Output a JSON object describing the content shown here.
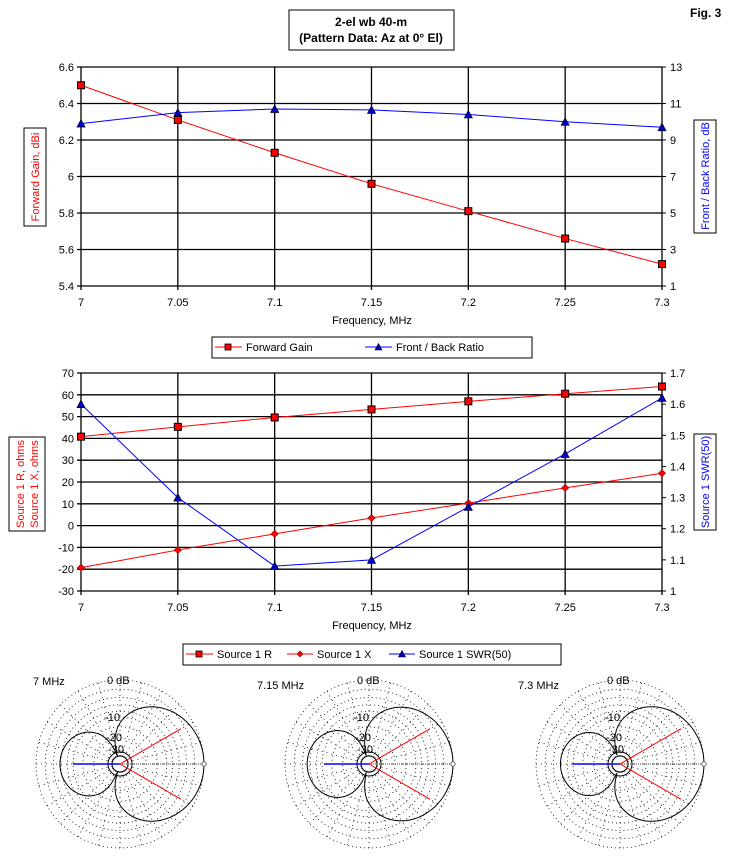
{
  "figure": {
    "label": "Fig. 3",
    "title_line1": "2-el wb 40-m",
    "title_line2": "(Pattern Data: Az at 0° El)"
  },
  "colors": {
    "red": "#ff0000",
    "blue": "#0000ff",
    "marker_red": "#ff0000",
    "marker_blue": "#0000cc"
  },
  "chart_data": [
    {
      "type": "line",
      "title": "2-el wb 40-m (Pattern Data: Az at 0° El)",
      "xlabel": "Frequency, MHz",
      "ylabel": "Forward Gain, dBi",
      "y2label": "Front / Back Ratio, dB",
      "x": [
        7,
        7.05,
        7.1,
        7.15,
        7.2,
        7.25,
        7.3
      ],
      "x_tick_labels": [
        "7",
        "7.05",
        "7.1",
        "7.15",
        "7.2",
        "7.25",
        "7.3"
      ],
      "xlim": [
        7,
        7.3
      ],
      "ylim": [
        5.4,
        6.6
      ],
      "y_tick_labels": [
        "6.6",
        "6.4",
        "6.2",
        "6",
        "5.8",
        "5.6",
        "5.4"
      ],
      "y2lim": [
        1,
        13
      ],
      "y2_tick_labels": [
        "13",
        "11",
        "9",
        "7",
        "5",
        "3",
        "1"
      ],
      "grid": true,
      "legend_position": "bottom",
      "series": [
        {
          "name": "Forward Gain",
          "axis": "left",
          "marker": "square",
          "color": "#ff0000",
          "values": [
            6.5,
            6.31,
            6.13,
            5.96,
            5.81,
            5.66,
            5.52
          ]
        },
        {
          "name": "Front / Back Ratio",
          "axis": "right",
          "marker": "triangle",
          "color": "#0000ff",
          "values": [
            9.9,
            10.5,
            10.7,
            10.65,
            10.4,
            10.0,
            9.7
          ]
        }
      ]
    },
    {
      "type": "line",
      "xlabel": "Frequency, MHz",
      "ylabel_lines": [
        "Source 1 R,  ohms",
        "Source 1 X,  ohms"
      ],
      "y2label": "Source 1 SWR(50)",
      "x": [
        7,
        7.05,
        7.1,
        7.15,
        7.2,
        7.25,
        7.3
      ],
      "x_tick_labels": [
        "7",
        "7.05",
        "7.1",
        "7.15",
        "7.2",
        "7.25",
        "7.3"
      ],
      "xlim": [
        7,
        7.3
      ],
      "ylim": [
        -30,
        70
      ],
      "y_tick_labels": [
        "70",
        "60",
        "50",
        "40",
        "30",
        "20",
        "10",
        "0",
        "-10",
        "-20",
        "-30"
      ],
      "y2lim": [
        1,
        1.7
      ],
      "y2_tick_labels": [
        "1.7",
        "1.6",
        "1.5",
        "1.4",
        "1.3",
        "1.2",
        "1.1",
        "1"
      ],
      "grid": true,
      "legend_position": "bottom",
      "series": [
        {
          "name": "Source 1 R",
          "axis": "left",
          "marker": "square",
          "color": "#ff0000",
          "values": [
            40.8,
            45.3,
            49.6,
            53.3,
            57.0,
            60.5,
            63.8
          ]
        },
        {
          "name": "Source 1 X",
          "axis": "left",
          "marker": "diamond",
          "color": "#ff0000",
          "values": [
            -19.3,
            -11.2,
            -3.8,
            3.5,
            10.3,
            17.3,
            24.0
          ]
        },
        {
          "name": "Source 1 SWR(50)",
          "axis": "right",
          "marker": "triangle",
          "color": "#0000ff",
          "values": [
            1.6,
            1.3,
            1.08,
            1.1,
            1.27,
            1.44,
            1.62
          ]
        }
      ]
    },
    {
      "type": "polar",
      "plots": [
        {
          "label": "7 MHz",
          "front_to_back_db": 9.9
        },
        {
          "label": "7.15 MHz",
          "front_to_back_db": 10.65
        },
        {
          "label": "7.3 MHz",
          "front_to_back_db": 9.7
        }
      ],
      "ring_labels": [
        "0 dB",
        "-10",
        "-20",
        "-30"
      ],
      "beamwidth_half_angle_deg": 30
    }
  ]
}
